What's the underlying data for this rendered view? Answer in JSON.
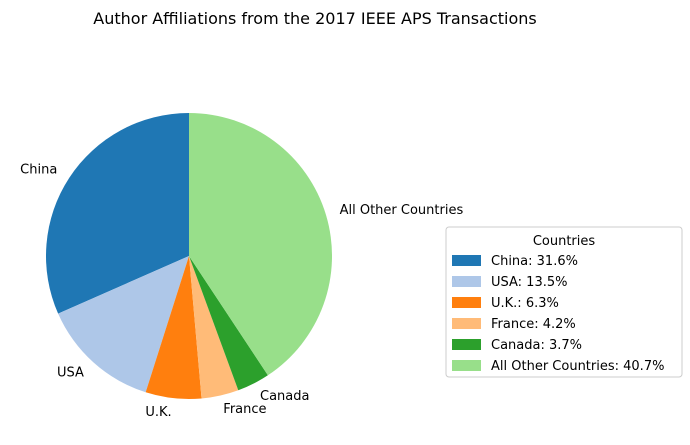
{
  "chart_data": {
    "type": "pie",
    "title": "Author Affiliations from the 2017 IEEE APS Transactions",
    "start_angle": "top",
    "direction": "counterclockwise",
    "slices": [
      {
        "label": "China",
        "value": 31.6,
        "color": "#1f77b4"
      },
      {
        "label": "USA",
        "value": 13.5,
        "color": "#aec7e8"
      },
      {
        "label": "U.K.",
        "value": 6.3,
        "color": "#ff7f0e"
      },
      {
        "label": "France",
        "value": 4.2,
        "color": "#ffbb78"
      },
      {
        "label": "Canada",
        "value": 3.7,
        "color": "#2ca02c"
      },
      {
        "label": "All Other Countries",
        "value": 40.7,
        "color": "#98df8a"
      }
    ],
    "legend": {
      "title": "Countries",
      "placement": "right",
      "entries": [
        "China: 31.6%",
        "USA: 13.5%",
        "U.K.: 6.3%",
        "France: 4.2%",
        "Canada: 3.7%",
        "All Other Countries: 40.7%"
      ]
    }
  }
}
